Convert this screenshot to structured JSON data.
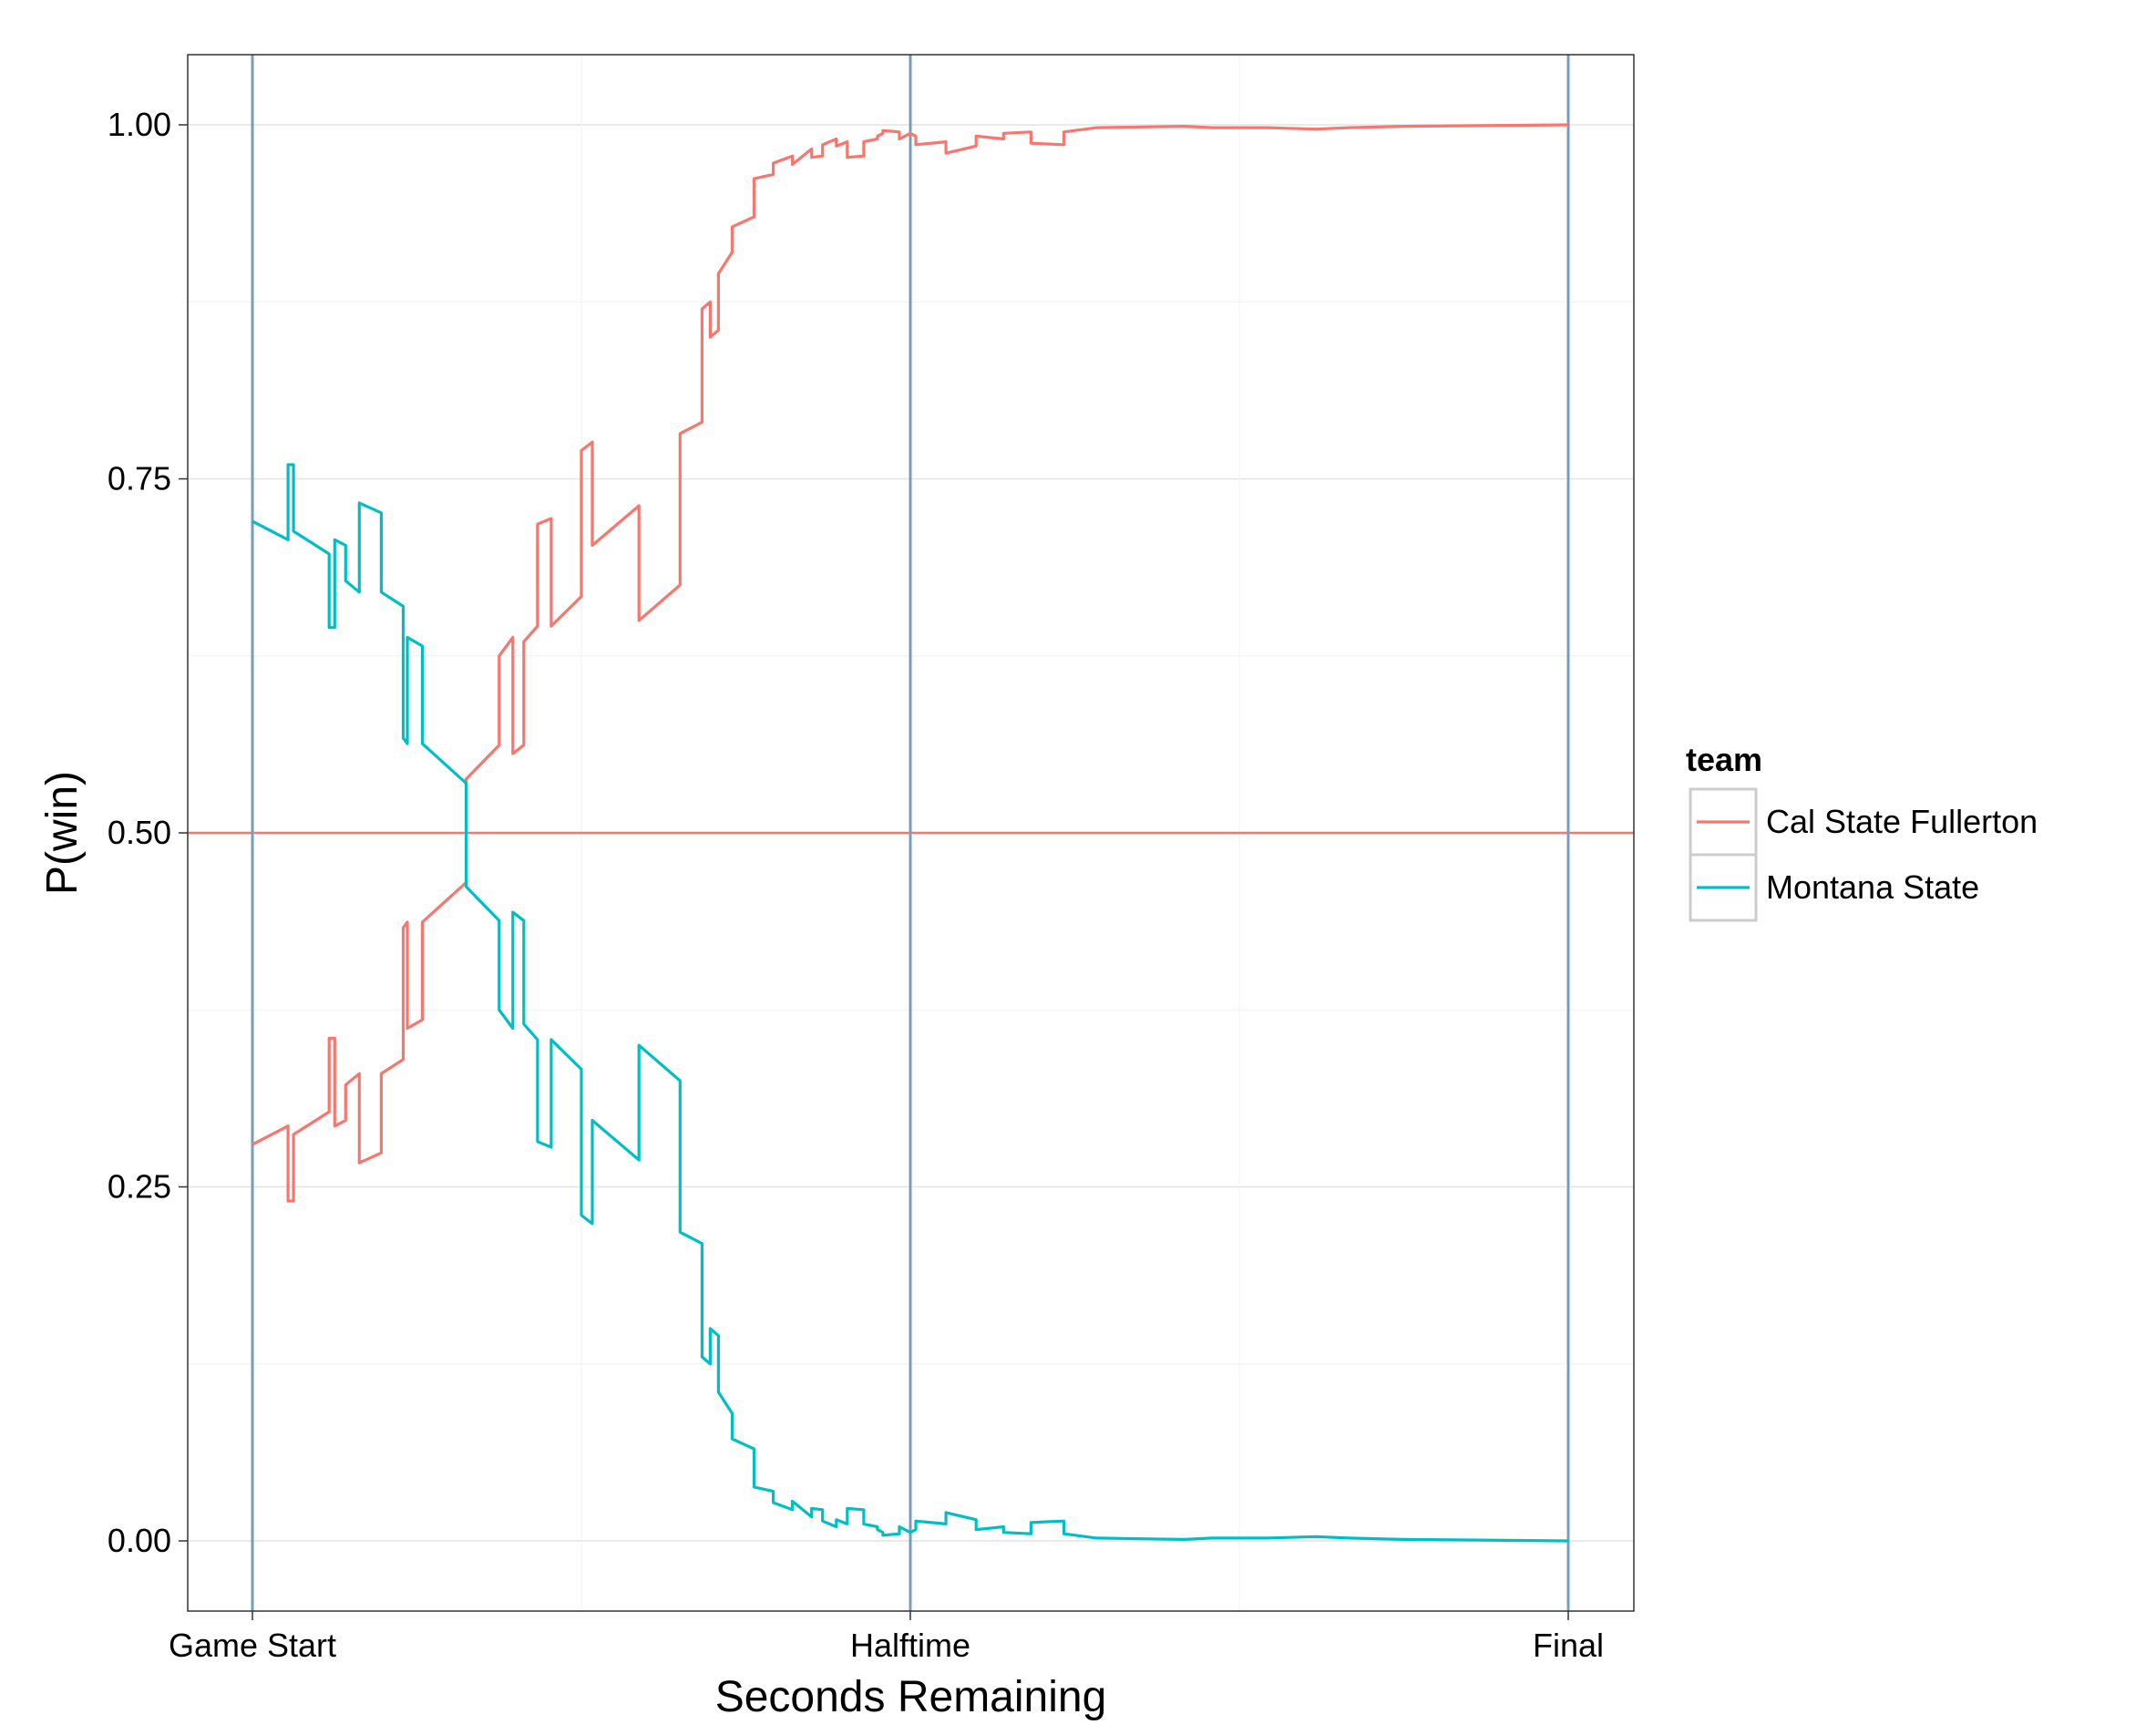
{
  "chart_data": {
    "type": "line",
    "title": "",
    "xlabel": "Seconds Remaining",
    "ylabel": "P(win)",
    "x_unit": "seconds elapsed",
    "xlim": [
      -175,
      4375
    ],
    "ylim": [
      -0.05,
      1.05
    ],
    "grid": true,
    "x_ticks": [
      {
        "value": 0,
        "label": "Game Start"
      },
      {
        "value": 2400,
        "label": "Halftime"
      },
      {
        "value": 4800,
        "label": "Final"
      }
    ],
    "y_ticks": [
      {
        "value": 0.0,
        "label": "0.00"
      },
      {
        "value": 0.25,
        "label": "0.25"
      },
      {
        "value": 0.5,
        "label": "0.50"
      },
      {
        "value": 0.75,
        "label": "0.75"
      },
      {
        "value": 1.0,
        "label": "1.00"
      }
    ],
    "reference_lines": {
      "horizontal": [
        {
          "y": 0.5,
          "color": "#F8766D"
        }
      ],
      "vertical": [
        {
          "x": 0,
          "color": "#7A9CBB"
        },
        {
          "x": 2400,
          "color": "#7A9CBB"
        },
        {
          "x": 4800,
          "color": "#7A9CBB"
        }
      ]
    },
    "legend": {
      "title": "team",
      "position": "right"
    },
    "series": [
      {
        "name": "Cal State Fullerton",
        "color": "#F8766D",
        "points": [
          [
            0,
            0.28
          ],
          [
            130,
            0.293
          ],
          [
            130,
            0.24
          ],
          [
            150,
            0.24
          ],
          [
            150,
            0.287
          ],
          [
            280,
            0.303
          ],
          [
            280,
            0.355
          ],
          [
            300,
            0.355
          ],
          [
            300,
            0.293
          ],
          [
            340,
            0.297
          ],
          [
            340,
            0.322
          ],
          [
            390,
            0.33
          ],
          [
            390,
            0.267
          ],
          [
            470,
            0.274
          ],
          [
            470,
            0.33
          ],
          [
            550,
            0.34
          ],
          [
            550,
            0.433
          ],
          [
            565,
            0.437
          ],
          [
            565,
            0.362
          ],
          [
            620,
            0.368
          ],
          [
            620,
            0.437
          ],
          [
            780,
            0.465
          ],
          [
            780,
            0.538
          ],
          [
            900,
            0.562
          ],
          [
            900,
            0.625
          ],
          [
            950,
            0.638
          ],
          [
            950,
            0.556
          ],
          [
            990,
            0.562
          ],
          [
            990,
            0.635
          ],
          [
            1040,
            0.646
          ],
          [
            1040,
            0.718
          ],
          [
            1090,
            0.722
          ],
          [
            1090,
            0.646
          ],
          [
            1200,
            0.667
          ],
          [
            1200,
            0.77
          ],
          [
            1240,
            0.776
          ],
          [
            1240,
            0.703
          ],
          [
            1410,
            0.731
          ],
          [
            1410,
            0.65
          ],
          [
            1560,
            0.675
          ],
          [
            1560,
            0.782
          ],
          [
            1640,
            0.79
          ],
          [
            1640,
            0.87
          ],
          [
            1670,
            0.875
          ],
          [
            1670,
            0.85
          ],
          [
            1700,
            0.855
          ],
          [
            1700,
            0.895
          ],
          [
            1750,
            0.91
          ],
          [
            1750,
            0.928
          ],
          [
            1830,
            0.935
          ],
          [
            1830,
            0.962
          ],
          [
            1900,
            0.965
          ],
          [
            1900,
            0.973
          ],
          [
            1970,
            0.978
          ],
          [
            1970,
            0.972
          ],
          [
            2040,
            0.983
          ],
          [
            2040,
            0.977
          ],
          [
            2080,
            0.978
          ],
          [
            2080,
            0.986
          ],
          [
            2130,
            0.99
          ],
          [
            2130,
            0.985
          ],
          [
            2170,
            0.988
          ],
          [
            2170,
            0.977
          ],
          [
            2230,
            0.978
          ],
          [
            2230,
            0.988
          ],
          [
            2280,
            0.99
          ],
          [
            2280,
            0.992
          ],
          [
            2300,
            0.994
          ],
          [
            2300,
            0.996
          ],
          [
            2360,
            0.995
          ],
          [
            2360,
            0.99
          ],
          [
            2400,
            0.994
          ],
          [
            2420,
            0.992
          ],
          [
            2420,
            0.986
          ],
          [
            2530,
            0.988
          ],
          [
            2530,
            0.98
          ],
          [
            2640,
            0.985
          ],
          [
            2640,
            0.992
          ],
          [
            2740,
            0.99
          ],
          [
            2740,
            0.994
          ],
          [
            2840,
            0.995
          ],
          [
            2840,
            0.987
          ],
          [
            2960,
            0.986
          ],
          [
            2960,
            0.995
          ],
          [
            3080,
            0.998
          ],
          [
            3400,
            0.999
          ],
          [
            3500,
            0.998
          ],
          [
            3700,
            0.998
          ],
          [
            3880,
            0.997
          ],
          [
            4000,
            0.998
          ],
          [
            4200,
            0.999
          ],
          [
            4800,
            1.0
          ]
        ]
      },
      {
        "name": "Montana State",
        "color": "#00BFC4",
        "points": [
          [
            0,
            0.72
          ],
          [
            130,
            0.707
          ],
          [
            130,
            0.76
          ],
          [
            150,
            0.76
          ],
          [
            150,
            0.713
          ],
          [
            280,
            0.697
          ],
          [
            280,
            0.645
          ],
          [
            300,
            0.645
          ],
          [
            300,
            0.707
          ],
          [
            340,
            0.703
          ],
          [
            340,
            0.678
          ],
          [
            390,
            0.67
          ],
          [
            390,
            0.733
          ],
          [
            470,
            0.726
          ],
          [
            470,
            0.67
          ],
          [
            550,
            0.66
          ],
          [
            550,
            0.567
          ],
          [
            565,
            0.563
          ],
          [
            565,
            0.638
          ],
          [
            620,
            0.632
          ],
          [
            620,
            0.563
          ],
          [
            780,
            0.535
          ],
          [
            780,
            0.462
          ],
          [
            900,
            0.438
          ],
          [
            900,
            0.375
          ],
          [
            950,
            0.362
          ],
          [
            950,
            0.444
          ],
          [
            990,
            0.438
          ],
          [
            990,
            0.365
          ],
          [
            1040,
            0.354
          ],
          [
            1040,
            0.282
          ],
          [
            1090,
            0.278
          ],
          [
            1090,
            0.354
          ],
          [
            1200,
            0.333
          ],
          [
            1200,
            0.23
          ],
          [
            1240,
            0.224
          ],
          [
            1240,
            0.297
          ],
          [
            1410,
            0.269
          ],
          [
            1410,
            0.35
          ],
          [
            1560,
            0.325
          ],
          [
            1560,
            0.218
          ],
          [
            1640,
            0.21
          ],
          [
            1640,
            0.13
          ],
          [
            1670,
            0.125
          ],
          [
            1670,
            0.15
          ],
          [
            1700,
            0.145
          ],
          [
            1700,
            0.105
          ],
          [
            1750,
            0.09
          ],
          [
            1750,
            0.072
          ],
          [
            1830,
            0.065
          ],
          [
            1830,
            0.038
          ],
          [
            1900,
            0.035
          ],
          [
            1900,
            0.027
          ],
          [
            1970,
            0.022
          ],
          [
            1970,
            0.028
          ],
          [
            2040,
            0.017
          ],
          [
            2040,
            0.023
          ],
          [
            2080,
            0.022
          ],
          [
            2080,
            0.014
          ],
          [
            2130,
            0.01
          ],
          [
            2130,
            0.015
          ],
          [
            2170,
            0.012
          ],
          [
            2170,
            0.023
          ],
          [
            2230,
            0.022
          ],
          [
            2230,
            0.012
          ],
          [
            2280,
            0.01
          ],
          [
            2280,
            0.008
          ],
          [
            2300,
            0.006
          ],
          [
            2300,
            0.004
          ],
          [
            2360,
            0.005
          ],
          [
            2360,
            0.01
          ],
          [
            2400,
            0.006
          ],
          [
            2420,
            0.008
          ],
          [
            2420,
            0.014
          ],
          [
            2530,
            0.012
          ],
          [
            2530,
            0.02
          ],
          [
            2640,
            0.015
          ],
          [
            2640,
            0.008
          ],
          [
            2740,
            0.01
          ],
          [
            2740,
            0.006
          ],
          [
            2840,
            0.005
          ],
          [
            2840,
            0.013
          ],
          [
            2960,
            0.014
          ],
          [
            2960,
            0.005
          ],
          [
            3080,
            0.002
          ],
          [
            3400,
            0.001
          ],
          [
            3500,
            0.002
          ],
          [
            3700,
            0.002
          ],
          [
            3880,
            0.003
          ],
          [
            4000,
            0.002
          ],
          [
            4200,
            0.001
          ],
          [
            4800,
            0.0
          ]
        ]
      }
    ]
  }
}
